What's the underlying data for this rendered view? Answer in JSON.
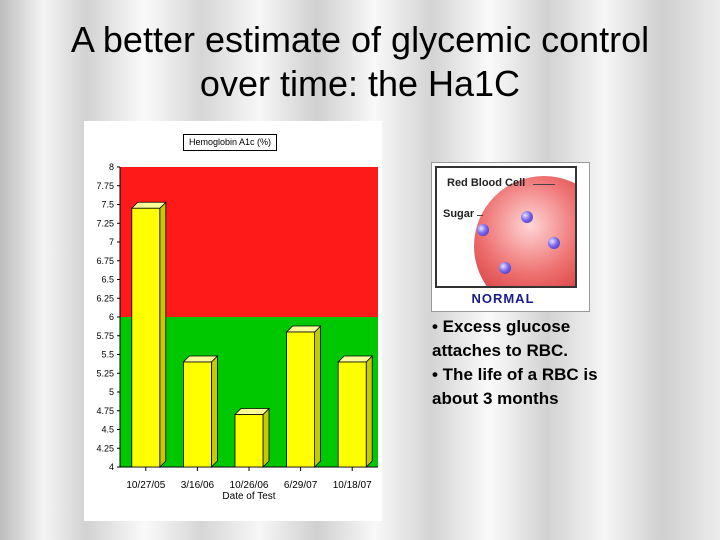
{
  "slide": {
    "title_line1": "A better estimate of glycemic control",
    "title_line2": "over time: the Ha1C"
  },
  "chart_data": {
    "type": "bar",
    "legend": "Hemoglobin A1c (%)",
    "legend_position": "top-center",
    "categories": [
      "10/27/05",
      "3/16/06",
      "10/26/06",
      "6/29/07",
      "10/18/07"
    ],
    "values": [
      7.45,
      5.4,
      4.7,
      5.8,
      5.4
    ],
    "xlabel": "Date of Test",
    "ylim": [
      4,
      8
    ],
    "yticks": [
      "4",
      "4.25",
      "4.5",
      "4.75",
      "5",
      "5.25",
      "5.5",
      "5.75",
      "6",
      "6.25",
      "6.5",
      "6.75",
      "7",
      "7.25",
      "7.5",
      "7.75",
      "8"
    ],
    "bands": [
      {
        "from": 4,
        "to": 6,
        "color": "#00c800"
      },
      {
        "from": 6,
        "to": 8,
        "color": "#ff1a1a"
      }
    ],
    "bar_color": "#ffff00"
  },
  "rbc": {
    "cell_label": "Red Blood Cell",
    "sugar_label": "Sugar",
    "status": "NORMAL"
  },
  "bullets": {
    "line1": "• Excess glucose",
    "line2": "attaches to RBC.",
    "line3": "• The life of a  RBC is",
    "line4": "about 3 months"
  }
}
